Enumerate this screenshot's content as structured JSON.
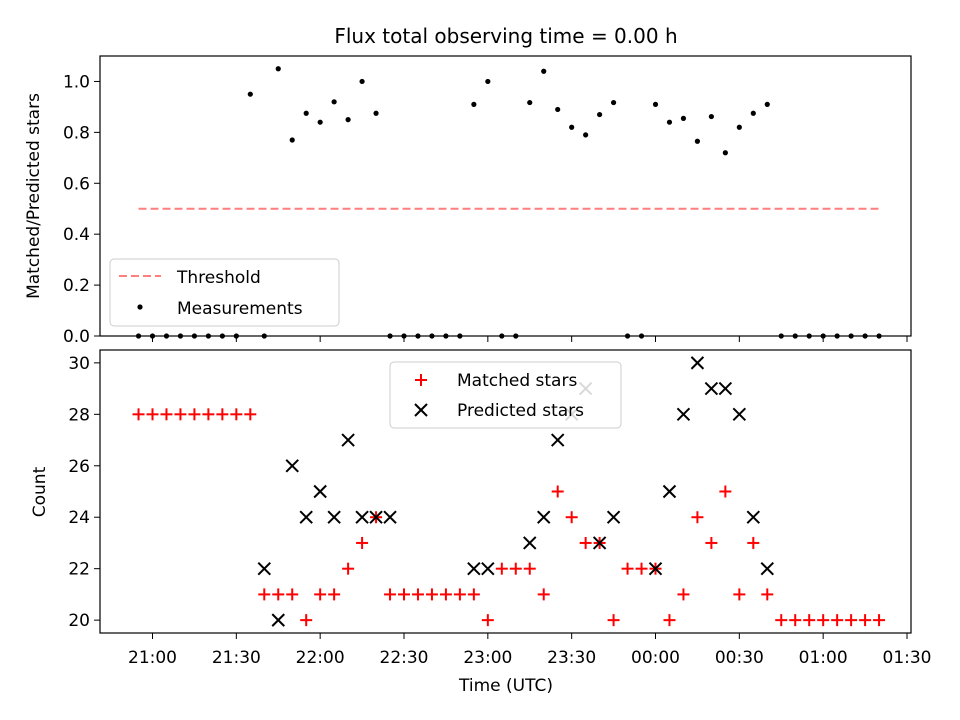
{
  "chart_data": [
    {
      "type": "scatter",
      "title": "Flux total observing time = 0.00 h",
      "xlabel": "",
      "ylabel": "Matched/Predicted stars",
      "ylim": [
        0,
        1.1
      ],
      "yticks": [
        "0.0",
        "0.2",
        "0.4",
        "0.6",
        "0.8",
        "1.0"
      ],
      "grid": false,
      "legend_position": "lower-left",
      "series": [
        {
          "name": "Threshold",
          "style": "dashed-line",
          "color": "#ff7f7f",
          "x": [
            "20:55",
            "01:20"
          ],
          "y": [
            0.5,
            0.5
          ]
        },
        {
          "name": "Measurements",
          "style": "dot",
          "color": "#000000",
          "x": [
            "20:55",
            "21:00",
            "21:05",
            "21:10",
            "21:15",
            "21:20",
            "21:25",
            "21:30",
            "21:35",
            "21:40",
            "21:45",
            "21:50",
            "21:55",
            "22:00",
            "22:05",
            "22:10",
            "22:15",
            "22:20",
            "22:25",
            "22:30",
            "22:35",
            "22:40",
            "22:45",
            "22:50",
            "22:55",
            "23:00",
            "23:05",
            "23:10",
            "23:15",
            "23:20",
            "23:25",
            "23:30",
            "23:35",
            "23:40",
            "23:45",
            "23:50",
            "23:55",
            "00:00",
            "00:05",
            "00:10",
            "00:15",
            "00:20",
            "00:25",
            "00:30",
            "00:35",
            "00:40",
            "00:45",
            "00:50",
            "00:55",
            "01:00",
            "01:05",
            "01:10",
            "01:15",
            "01:20"
          ],
          "y": [
            0,
            0,
            0,
            0,
            0,
            0,
            0,
            0,
            0.95,
            0,
            1.05,
            0.77,
            0.875,
            0.84,
            0.92,
            0.85,
            1.0,
            0.875,
            0,
            0,
            0,
            0,
            0,
            0,
            0.91,
            1.0,
            0,
            0,
            0.917,
            1.04,
            0.89,
            0.82,
            0.79,
            0.87,
            0.917,
            0,
            0,
            0.91,
            0.84,
            0.855,
            0.765,
            0.862,
            0.72,
            0.82,
            0.875,
            0.91,
            0,
            0,
            0,
            0,
            0,
            0,
            0,
            0
          ]
        }
      ]
    },
    {
      "type": "scatter",
      "title": "",
      "xlabel": "Time (UTC)",
      "ylabel": "Count",
      "ylim": [
        19.5,
        30.5
      ],
      "yticks": [
        "20",
        "22",
        "24",
        "26",
        "28",
        "30"
      ],
      "xticks": [
        "21:00",
        "21:30",
        "22:00",
        "22:30",
        "23:00",
        "23:30",
        "00:00",
        "00:30",
        "01:00",
        "01:30"
      ],
      "grid": false,
      "legend_position": "upper-center",
      "series": [
        {
          "name": "Matched stars",
          "marker": "plus",
          "color": "#ff0000",
          "x": [
            "20:55",
            "21:00",
            "21:05",
            "21:10",
            "21:15",
            "21:20",
            "21:25",
            "21:30",
            "21:35",
            "21:40",
            "21:45",
            "21:50",
            "21:55",
            "22:00",
            "22:05",
            "22:10",
            "22:15",
            "22:20",
            "22:25",
            "22:30",
            "22:35",
            "22:40",
            "22:45",
            "22:50",
            "22:55",
            "23:00",
            "23:05",
            "23:10",
            "23:15",
            "23:20",
            "23:25",
            "23:30",
            "23:35",
            "23:40",
            "23:45",
            "23:50",
            "23:55",
            "00:00",
            "00:05",
            "00:10",
            "00:15",
            "00:20",
            "00:25",
            "00:30",
            "00:35",
            "00:40",
            "00:45",
            "00:50",
            "00:55",
            "01:00",
            "01:05",
            "01:10",
            "01:15",
            "01:20"
          ],
          "y": [
            28,
            28,
            28,
            28,
            28,
            28,
            28,
            28,
            28,
            21,
            21,
            21,
            20,
            21,
            21,
            22,
            23,
            24,
            21,
            21,
            21,
            21,
            21,
            21,
            21,
            20,
            22,
            22,
            22,
            21,
            25,
            24,
            23,
            23,
            20,
            22,
            22,
            22,
            20,
            21,
            24,
            23,
            25,
            21,
            23,
            21,
            20,
            20,
            20,
            20,
            20,
            20,
            20,
            20
          ]
        },
        {
          "name": "Predicted stars",
          "marker": "x",
          "color": "#000000",
          "x": [
            "21:40",
            "21:45",
            "21:50",
            "21:55",
            "22:00",
            "22:05",
            "22:10",
            "22:15",
            "22:20",
            "22:25",
            "22:55",
            "23:00",
            "23:15",
            "23:20",
            "23:25",
            "23:30",
            "23:35",
            "23:40",
            "23:45",
            "00:00",
            "00:05",
            "00:10",
            "00:15",
            "00:20",
            "00:25",
            "00:30",
            "00:35",
            "00:40"
          ],
          "y": [
            22,
            20,
            26,
            24,
            25,
            24,
            27,
            24,
            24,
            24,
            22,
            22,
            23,
            24,
            27,
            28,
            29,
            23,
            24,
            22,
            25,
            28,
            30,
            29,
            29,
            28,
            24,
            22
          ]
        }
      ]
    }
  ]
}
